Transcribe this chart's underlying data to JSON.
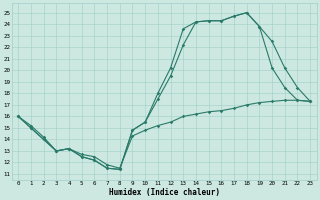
{
  "xlabel": "Humidex (Indice chaleur)",
  "background_color": "#cce8e0",
  "grid_color": "#9fcfca",
  "line_color": "#2a7a6a",
  "xlim": [
    -0.5,
    23.5
  ],
  "ylim": [
    10.5,
    25.8
  ],
  "xticks": [
    0,
    1,
    2,
    3,
    4,
    5,
    6,
    7,
    8,
    9,
    10,
    11,
    12,
    13,
    14,
    15,
    16,
    17,
    18,
    19,
    20,
    21,
    22,
    23
  ],
  "yticks": [
    11,
    12,
    13,
    14,
    15,
    16,
    17,
    18,
    19,
    20,
    21,
    22,
    23,
    24,
    25
  ],
  "line1_x": [
    0,
    1,
    2,
    3,
    4,
    5,
    6,
    7,
    8,
    9,
    10,
    11,
    12,
    13,
    14,
    15,
    16,
    17,
    18,
    19,
    20,
    21,
    22,
    23
  ],
  "line1_y": [
    16.0,
    15.0,
    14.0,
    13.0,
    13.2,
    12.5,
    12.2,
    11.5,
    11.4,
    14.8,
    15.5,
    18.0,
    20.2,
    23.6,
    24.2,
    24.3,
    24.3,
    24.7,
    25.0,
    23.8,
    20.2,
    18.5,
    17.4,
    17.3
  ],
  "line2_x": [
    0,
    1,
    2,
    3,
    4,
    5,
    6,
    7,
    8,
    9,
    10,
    11,
    12,
    13,
    14,
    15,
    16,
    17,
    18,
    19,
    20,
    21,
    22,
    23
  ],
  "line2_y": [
    16.0,
    15.0,
    14.0,
    13.0,
    13.2,
    12.5,
    12.2,
    11.5,
    11.4,
    14.8,
    15.5,
    17.5,
    19.5,
    22.2,
    24.2,
    24.3,
    24.3,
    24.7,
    25.0,
    23.8,
    22.5,
    20.2,
    18.5,
    17.3
  ],
  "line3_x": [
    0,
    1,
    2,
    3,
    4,
    5,
    6,
    7,
    8,
    9,
    10,
    11,
    12,
    13,
    14,
    15,
    16,
    17,
    18,
    19,
    20,
    21,
    22,
    23
  ],
  "line3_y": [
    16.0,
    15.2,
    14.2,
    13.0,
    13.2,
    12.7,
    12.5,
    11.8,
    11.5,
    14.3,
    14.8,
    15.2,
    15.5,
    16.0,
    16.2,
    16.4,
    16.5,
    16.7,
    17.0,
    17.2,
    17.3,
    17.4,
    17.4,
    17.3
  ],
  "xlabel_fontsize": 5.5,
  "tick_fontsize": 4.2
}
